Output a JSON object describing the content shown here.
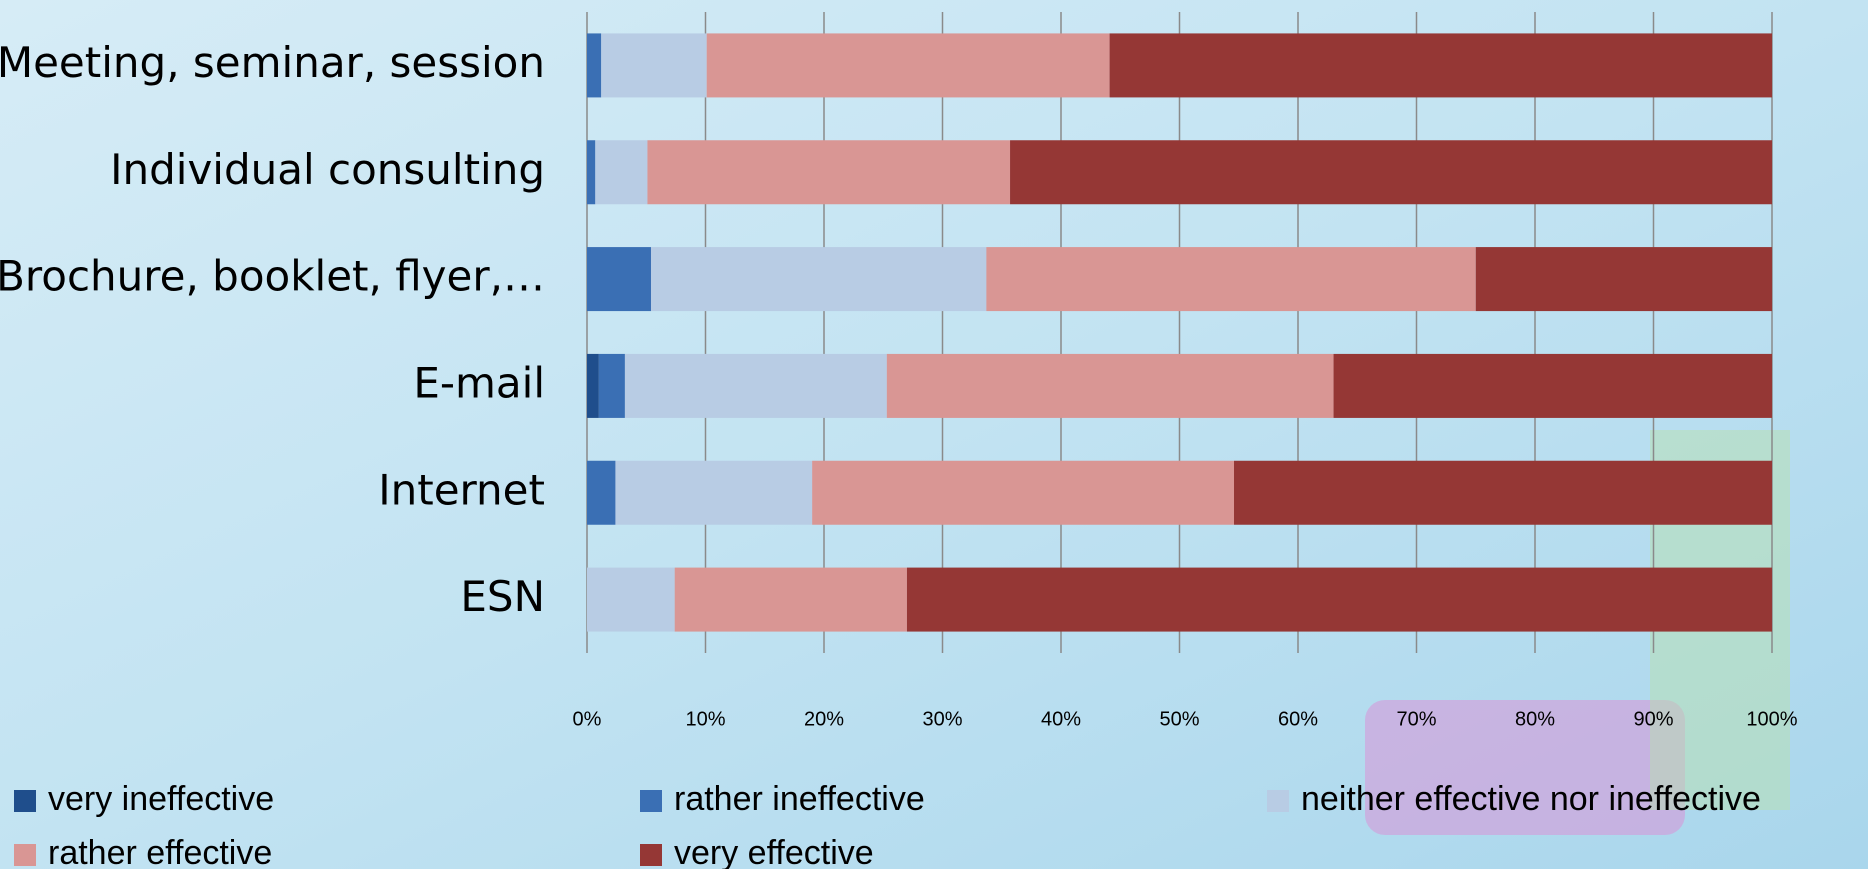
{
  "chart_data": {
    "type": "stacked-bar-horizontal",
    "categories": [
      "Meeting, seminar, session",
      "Individual consulting",
      "Brochure, booklet, flyer,…",
      "E-mail",
      "Internet",
      "ESN"
    ],
    "series": [
      {
        "name": "very ineffective",
        "color": "#1f4e8c",
        "values": [
          0,
          0,
          0,
          1.0,
          0,
          0
        ]
      },
      {
        "name": "rather ineffective",
        "color": "#3a6fb4",
        "values": [
          1.2,
          0.7,
          5.4,
          2.2,
          2.4,
          0
        ]
      },
      {
        "name": "neither effective nor ineffective",
        "color": "#b8cce4",
        "values": [
          8.9,
          4.4,
          28.3,
          22.1,
          16.6,
          7.4
        ]
      },
      {
        "name": "rather effective",
        "color": "#d99694",
        "values": [
          34.0,
          30.6,
          41.3,
          37.7,
          35.6,
          19.6
        ]
      },
      {
        "name": "very effective",
        "color": "#953735",
        "values": [
          55.9,
          64.3,
          25.0,
          37.0,
          45.4,
          73.0
        ]
      }
    ],
    "xlim": [
      0,
      100
    ],
    "xticks": [
      {
        "value": 0,
        "label": "0%"
      },
      {
        "value": 10,
        "label": "10%"
      },
      {
        "value": 20,
        "label": "20%"
      },
      {
        "value": 30,
        "label": "30%"
      },
      {
        "value": 40,
        "label": "40%"
      },
      {
        "value": 50,
        "label": "50%"
      },
      {
        "value": 60,
        "label": "60%"
      },
      {
        "value": 70,
        "label": "70%"
      },
      {
        "value": 80,
        "label": "80%"
      },
      {
        "value": 90,
        "label": "90%"
      },
      {
        "value": 100,
        "label": "100%"
      }
    ],
    "grid": true
  }
}
